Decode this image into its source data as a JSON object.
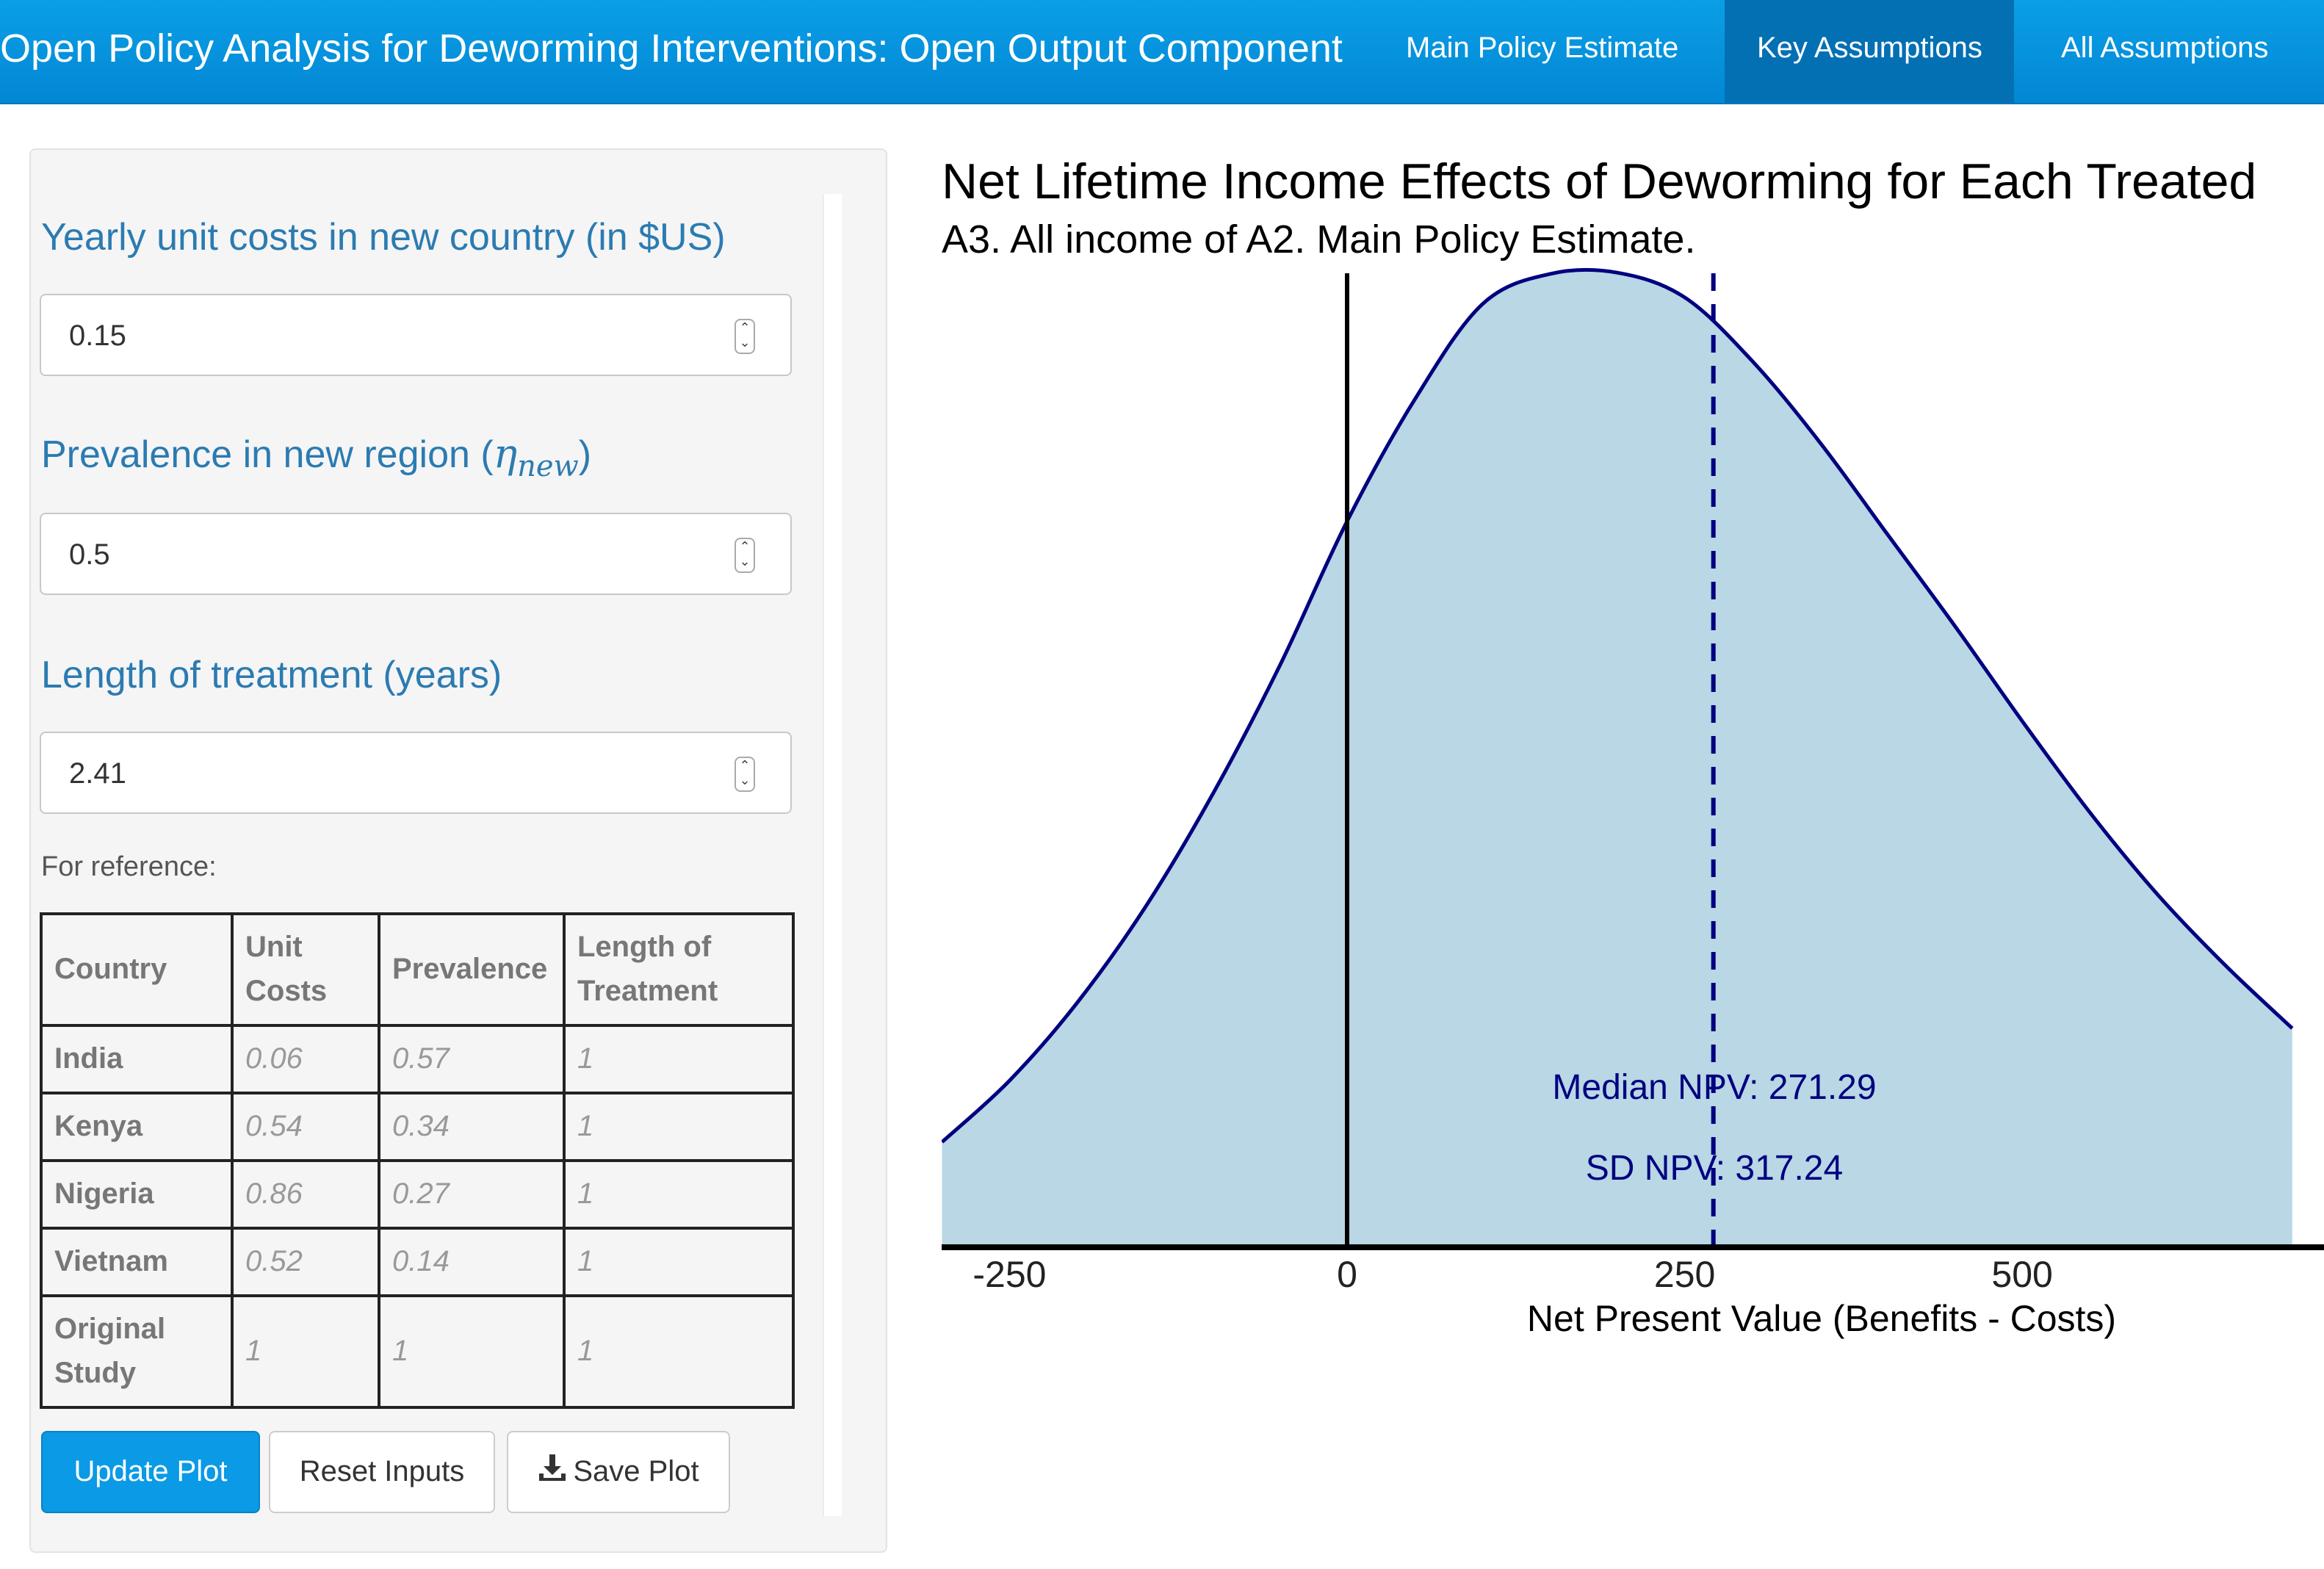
{
  "navbar": {
    "title": "Open Policy Analysis for Deworming Interventions: Open Output Component",
    "tabs": [
      {
        "label": "Main Policy Estimate",
        "active": false
      },
      {
        "label": "Key Assumptions",
        "active": true
      },
      {
        "label": "All Assumptions",
        "active": false
      }
    ]
  },
  "sidebar": {
    "unit_cost": {
      "label": "Yearly unit costs in new country (in $US)",
      "value": "0.15"
    },
    "prevalence": {
      "label": "Prevalence in new region (",
      "symbol": "η",
      "subscript": "new",
      "close": ")",
      "value": "0.5"
    },
    "length": {
      "label": "Length of treatment (years)",
      "value": "2.41"
    },
    "reference_label": "For reference:",
    "table": {
      "headers": [
        "Country",
        "Unit Costs",
        "Prevalence",
        "Length of Treatment"
      ],
      "rows": [
        [
          "India",
          "0.06",
          "0.57",
          "1"
        ],
        [
          "Kenya",
          "0.54",
          "0.34",
          "1"
        ],
        [
          "Nigeria",
          "0.86",
          "0.27",
          "1"
        ],
        [
          "Vietnam",
          "0.52",
          "0.14",
          "1"
        ],
        [
          "Original Study",
          "1",
          "1",
          "1"
        ]
      ]
    },
    "buttons": {
      "update": "Update Plot",
      "reset": "Reset Inputs",
      "save": "Save Plot"
    }
  },
  "colors": {
    "navbar": "#0a9fe6",
    "active_tab": "#0470b4",
    "label_blue": "#2b7bb1",
    "density_fill": "#b9d7e4",
    "density_line": "#000080"
  },
  "chart_data": {
    "type": "area",
    "title": "Net Lifetime Income Effects of Deworming for Each Treated",
    "subtitle": "A3. All income of A2. Main Policy Estimate.",
    "xlabel": "Net Present Value (Benefits -  Costs)",
    "x_ticks": [
      -250,
      0,
      250,
      500
    ],
    "xlim": [
      -300,
      700
    ],
    "ylim": [
      0,
      0.00135
    ],
    "density": {
      "x": [
        -300,
        -250,
        -200,
        -150,
        -100,
        -50,
        0,
        50,
        100,
        150,
        200,
        250,
        300,
        350,
        400,
        450,
        500,
        550,
        600,
        650,
        700
      ],
      "y": [
        0.000149,
        0.000236,
        0.000346,
        0.00048,
        0.00064,
        0.000823,
        0.001028,
        0.0012,
        0.001335,
        0.001378,
        0.00138,
        0.001345,
        0.001255,
        0.00114,
        0.00101,
        0.00088,
        0.000745,
        0.000616,
        0.0005,
        0.0004,
        0.00031
      ]
    },
    "reference_line_x": 0,
    "median_line_x": 271.29,
    "annotations": {
      "median": "Median NPV:  271.29",
      "sd": "SD NPV:  317.24"
    }
  }
}
